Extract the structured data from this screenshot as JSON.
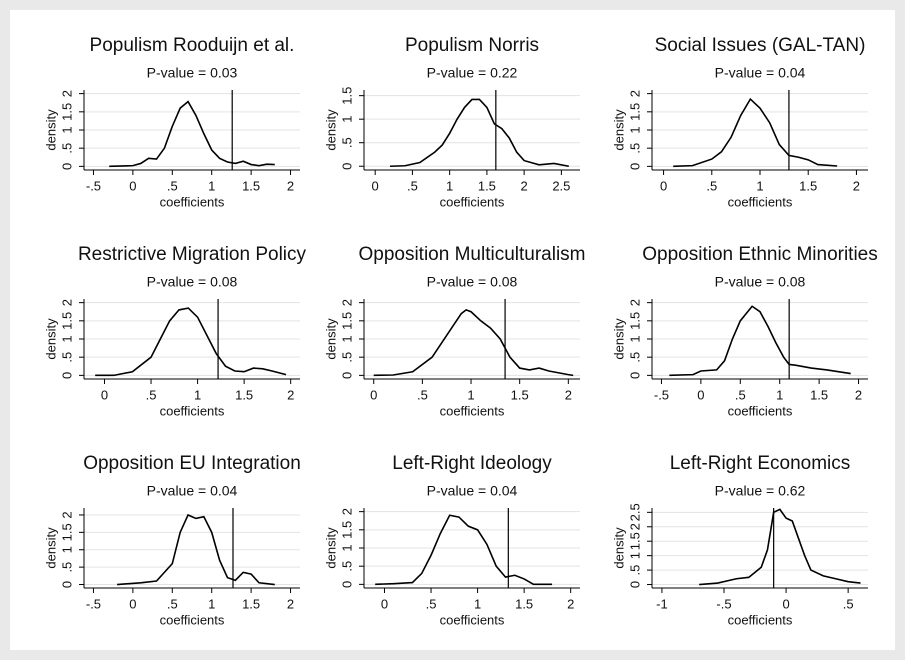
{
  "chart_data": [
    {
      "type": "line",
      "title": "Populism Rooduijn et al.",
      "subtitle": "P-value = 0.03",
      "xlabel": "coefficients",
      "ylabel": "density",
      "color": "#000000",
      "grid": true,
      "x": [
        -0.3,
        0,
        0.1,
        0.2,
        0.3,
        0.4,
        0.5,
        0.6,
        0.7,
        0.8,
        0.9,
        1.0,
        1.1,
        1.2,
        1.3,
        1.4,
        1.5,
        1.6,
        1.7,
        1.8
      ],
      "values": [
        0,
        0.02,
        0.08,
        0.22,
        0.2,
        0.5,
        1.1,
        1.6,
        1.78,
        1.4,
        0.9,
        0.45,
        0.22,
        0.12,
        0.08,
        0.14,
        0.05,
        0.02,
        0.06,
        0.05
      ],
      "vline": 1.26,
      "xlim": [
        -0.62,
        2.12
      ],
      "ylim": [
        -0.1,
        2.1
      ],
      "xticks": [
        {
          "value": -0.5,
          "label": "-.5"
        },
        0,
        {
          "value": 0.5,
          "label": ".5"
        },
        1,
        1.5,
        2
      ],
      "yticks": [
        0,
        {
          "value": 0.5,
          "label": ".5"
        },
        1,
        1.5,
        2
      ]
    },
    {
      "type": "line",
      "title": "Populism Norris",
      "subtitle": "P-value = 0.22",
      "xlabel": "coefficients",
      "ylabel": "density",
      "color": "#000000",
      "grid": true,
      "x": [
        0.2,
        0.4,
        0.6,
        0.8,
        0.9,
        1.0,
        1.1,
        1.2,
        1.3,
        1.4,
        1.5,
        1.6,
        1.7,
        1.8,
        1.9,
        2.0,
        2.2,
        2.4,
        2.6
      ],
      "values": [
        0,
        0.01,
        0.08,
        0.3,
        0.45,
        0.7,
        1.0,
        1.25,
        1.42,
        1.42,
        1.25,
        0.9,
        0.8,
        0.6,
        0.3,
        0.12,
        0.03,
        0.06,
        0
      ],
      "vline": 1.62,
      "xlim": [
        -0.15,
        2.75
      ],
      "ylim": [
        -0.08,
        1.62
      ],
      "xticks": [
        0,
        {
          "value": 0.5,
          "label": ".5"
        },
        1,
        1.5,
        2,
        2.5
      ],
      "yticks": [
        0,
        {
          "value": 0.5,
          "label": ".5"
        },
        1,
        1.5
      ]
    },
    {
      "type": "line",
      "title": "Social Issues (GAL-TAN)",
      "subtitle": "P-value = 0.04",
      "xlabel": "coefficients",
      "ylabel": "density",
      "color": "#000000",
      "grid": true,
      "x": [
        0.1,
        0.3,
        0.5,
        0.6,
        0.7,
        0.8,
        0.9,
        1.0,
        1.1,
        1.2,
        1.3,
        1.4,
        1.5,
        1.6,
        1.8
      ],
      "values": [
        0,
        0.02,
        0.2,
        0.4,
        0.8,
        1.4,
        1.85,
        1.6,
        1.2,
        0.6,
        0.3,
        0.25,
        0.18,
        0.05,
        0.01
      ],
      "vline": 1.3,
      "xlim": [
        -0.12,
        2.12
      ],
      "ylim": [
        -0.1,
        2.1
      ],
      "xticks": [
        0,
        {
          "value": 0.5,
          "label": ".5"
        },
        1,
        1.5,
        2
      ],
      "yticks": [
        0,
        {
          "value": 0.5,
          "label": ".5"
        },
        1,
        1.5,
        2
      ]
    },
    {
      "type": "line",
      "title": "Restrictive Migration Policy",
      "subtitle": "P-value = 0.08",
      "xlabel": "coefficients",
      "ylabel": "density",
      "color": "#000000",
      "grid": true,
      "x": [
        -0.1,
        0.1,
        0.3,
        0.5,
        0.6,
        0.7,
        0.8,
        0.9,
        1.0,
        1.1,
        1.2,
        1.3,
        1.4,
        1.5,
        1.6,
        1.7,
        1.8,
        1.95
      ],
      "values": [
        0,
        0,
        0.1,
        0.5,
        1.0,
        1.5,
        1.8,
        1.85,
        1.6,
        1.1,
        0.6,
        0.25,
        0.12,
        0.1,
        0.2,
        0.18,
        0.12,
        0.02
      ],
      "vline": 1.22,
      "xlim": [
        -0.22,
        2.1
      ],
      "ylim": [
        -0.1,
        2.1
      ],
      "xticks": [
        0,
        {
          "value": 0.5,
          "label": ".5"
        },
        1,
        1.5,
        2
      ],
      "yticks": [
        0,
        {
          "value": 0.5,
          "label": ".5"
        },
        1,
        1.5,
        2
      ]
    },
    {
      "type": "line",
      "title": "Opposition Multiculturalism",
      "subtitle": "P-value = 0.08",
      "xlabel": "coefficients",
      "ylabel": "density",
      "color": "#000000",
      "grid": true,
      "x": [
        0,
        0.2,
        0.4,
        0.6,
        0.8,
        0.9,
        0.95,
        1.0,
        1.1,
        1.2,
        1.3,
        1.4,
        1.5,
        1.6,
        1.7,
        1.8,
        2.0,
        2.05
      ],
      "values": [
        0,
        0.01,
        0.1,
        0.5,
        1.3,
        1.7,
        1.8,
        1.75,
        1.5,
        1.3,
        1.0,
        0.5,
        0.2,
        0.15,
        0.2,
        0.12,
        0.02,
        0
      ],
      "vline": 1.35,
      "xlim": [
        -0.1,
        2.12
      ],
      "ylim": [
        -0.1,
        2.1
      ],
      "xticks": [
        0,
        {
          "value": 0.5,
          "label": ".5"
        },
        1,
        1.5,
        2
      ],
      "yticks": [
        0,
        {
          "value": 0.5,
          "label": ".5"
        },
        1,
        1.5,
        2
      ]
    },
    {
      "type": "line",
      "title": "Opposition Ethnic Minorities",
      "subtitle": "P-value = 0.08",
      "xlabel": "coefficients",
      "ylabel": "density",
      "color": "#000000",
      "grid": true,
      "x": [
        -0.4,
        -0.1,
        0,
        0.2,
        0.3,
        0.4,
        0.5,
        0.65,
        0.75,
        0.85,
        0.95,
        1.05,
        1.12,
        1.2,
        1.4,
        1.6,
        1.9
      ],
      "values": [
        0,
        0.02,
        0.12,
        0.15,
        0.4,
        1.0,
        1.5,
        1.9,
        1.75,
        1.35,
        0.9,
        0.5,
        0.3,
        0.28,
        0.2,
        0.15,
        0.05
      ],
      "vline": 1.12,
      "xlim": [
        -0.62,
        2.12
      ],
      "ylim": [
        -0.1,
        2.1
      ],
      "xticks": [
        {
          "value": -0.5,
          "label": "-.5"
        },
        0,
        {
          "value": 0.5,
          "label": ".5"
        },
        1,
        1.5,
        2
      ],
      "yticks": [
        0,
        {
          "value": 0.5,
          "label": ".5"
        },
        1,
        1.5,
        2
      ]
    },
    {
      "type": "line",
      "title": "Opposition EU Integration",
      "subtitle": "P-value = 0.04",
      "xlabel": "coefficients",
      "ylabel": "density",
      "color": "#000000",
      "grid": true,
      "x": [
        -0.2,
        0.1,
        0.3,
        0.5,
        0.6,
        0.7,
        0.8,
        0.9,
        1.0,
        1.1,
        1.2,
        1.3,
        1.4,
        1.5,
        1.6,
        1.8
      ],
      "values": [
        0,
        0.05,
        0.1,
        0.6,
        1.5,
        2.0,
        1.9,
        1.95,
        1.5,
        0.7,
        0.2,
        0.12,
        0.35,
        0.3,
        0.05,
        0
      ],
      "vline": 1.27,
      "xlim": [
        -0.62,
        2.12
      ],
      "ylim": [
        -0.1,
        2.2
      ],
      "xticks": [
        {
          "value": -0.5,
          "label": "-.5"
        },
        0,
        {
          "value": 0.5,
          "label": ".5"
        },
        1,
        1.5,
        2
      ],
      "yticks": [
        0,
        {
          "value": 0.5,
          "label": ".5"
        },
        1,
        1.5,
        2
      ]
    },
    {
      "type": "line",
      "title": "Left-Right Ideology",
      "subtitle": "P-value = 0.04",
      "xlabel": "coefficients",
      "ylabel": "density",
      "color": "#000000",
      "grid": true,
      "x": [
        -0.1,
        0.1,
        0.3,
        0.4,
        0.5,
        0.6,
        0.7,
        0.8,
        0.9,
        1.0,
        1.1,
        1.2,
        1.3,
        1.4,
        1.5,
        1.6,
        1.8
      ],
      "values": [
        0,
        0.02,
        0.05,
        0.3,
        0.8,
        1.4,
        1.9,
        1.85,
        1.6,
        1.5,
        1.1,
        0.5,
        0.2,
        0.25,
        0.15,
        0,
        0
      ],
      "vline": 1.33,
      "xlim": [
        -0.22,
        2.1
      ],
      "ylim": [
        -0.1,
        2.1
      ],
      "xticks": [
        0,
        {
          "value": 0.5,
          "label": ".5"
        },
        1,
        1.5,
        2
      ],
      "yticks": [
        0,
        {
          "value": 0.5,
          "label": ".5"
        },
        1,
        1.5,
        2
      ]
    },
    {
      "type": "line",
      "title": "Left-Right Economics",
      "subtitle": "P-value = 0.62",
      "xlabel": "coefficients",
      "ylabel": "density",
      "color": "#000000",
      "grid": true,
      "x": [
        -0.7,
        -0.55,
        -0.4,
        -0.3,
        -0.2,
        -0.15,
        -0.1,
        -0.05,
        0,
        0.05,
        0.1,
        0.15,
        0.2,
        0.3,
        0.4,
        0.5,
        0.6
      ],
      "values": [
        0,
        0.05,
        0.2,
        0.25,
        0.6,
        1.2,
        2.5,
        2.6,
        2.3,
        2.2,
        1.6,
        1.0,
        0.5,
        0.3,
        0.2,
        0.1,
        0.05
      ],
      "vline": -0.1,
      "xlim": [
        -1.08,
        0.66
      ],
      "ylim": [
        -0.12,
        2.65
      ],
      "xticks": [
        -1,
        {
          "value": -0.5,
          "label": "-.5"
        },
        0,
        {
          "value": 0.5,
          "label": ".5"
        }
      ],
      "yticks": [
        0,
        {
          "value": 0.5,
          "label": ".5"
        },
        1,
        1.5,
        2,
        2.5
      ]
    }
  ]
}
